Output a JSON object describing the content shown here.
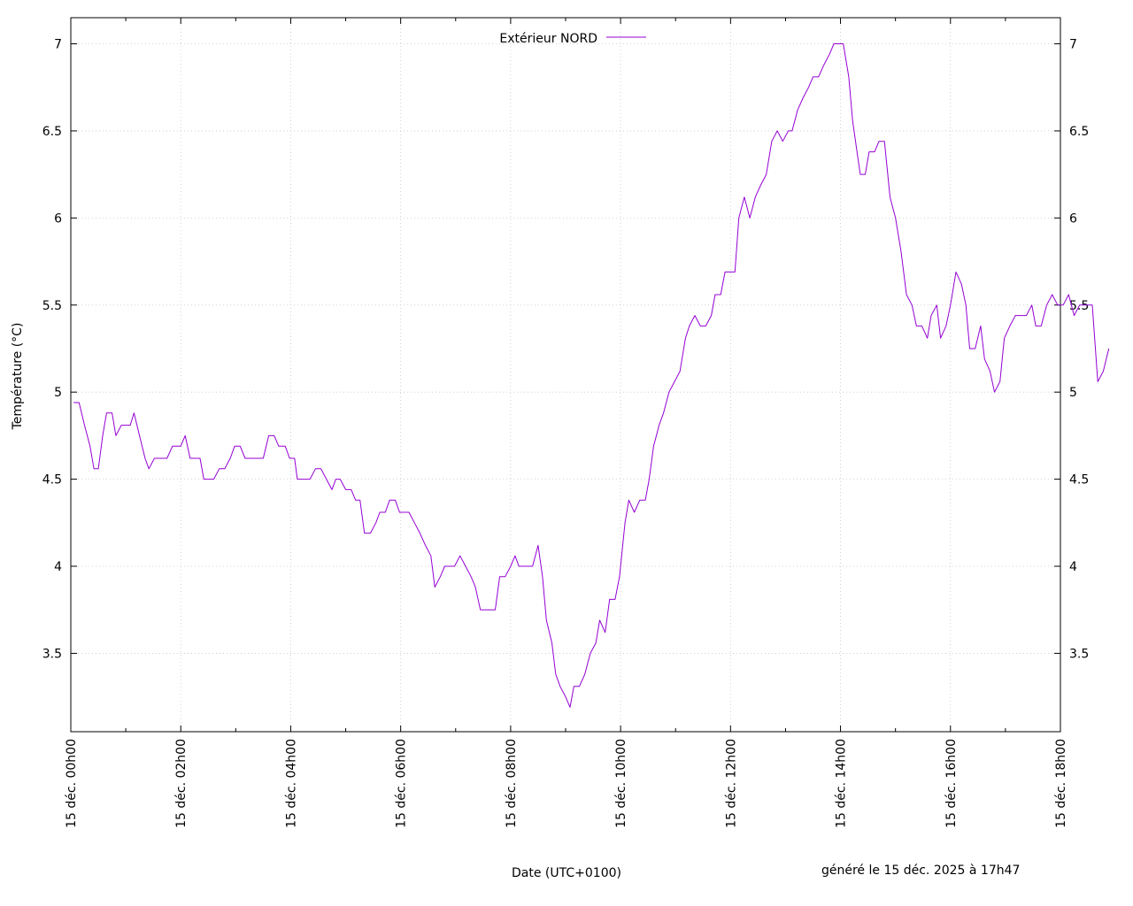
{
  "chart_data": {
    "type": "line",
    "title": "",
    "xlabel": "Date (UTC+0100)",
    "ylabel": "Température (°C)",
    "footer": "généré le 15 déc. 2025 à 17h47",
    "grid": true,
    "legend_position": "top-center",
    "x_unit": "hour of 15 déc. 2025",
    "xlim": [
      0,
      18
    ],
    "ylim": [
      3.05,
      7.15
    ],
    "x_ticks": [
      0,
      2,
      4,
      6,
      8,
      10,
      12,
      14,
      16,
      18
    ],
    "x_tick_labels": [
      "15 déc. 00h00",
      "15 déc. 02h00",
      "15 déc. 04h00",
      "15 déc. 06h00",
      "15 déc. 08h00",
      "15 déc. 10h00",
      "15 déc. 12h00",
      "15 déc. 14h00",
      "15 déc. 16h00",
      "15 déc. 18h00"
    ],
    "y_ticks": [
      3.5,
      4,
      4.5,
      5,
      5.5,
      6,
      6.5,
      7
    ],
    "y_tick_labels": [
      "3.5",
      "4",
      "4.5",
      "5",
      "5.5",
      "6",
      "6.5",
      "7"
    ],
    "series": [
      {
        "name": "Extérieur NORD",
        "color": "#9400d3",
        "points": [
          [
            0.05,
            4.94
          ],
          [
            0.15,
            4.94
          ],
          [
            0.25,
            4.81
          ],
          [
            0.35,
            4.69
          ],
          [
            0.42,
            4.56
          ],
          [
            0.5,
            4.56
          ],
          [
            0.58,
            4.75
          ],
          [
            0.65,
            4.88
          ],
          [
            0.75,
            4.88
          ],
          [
            0.82,
            4.75
          ],
          [
            0.92,
            4.81
          ],
          [
            1.08,
            4.81
          ],
          [
            1.15,
            4.88
          ],
          [
            1.25,
            4.75
          ],
          [
            1.35,
            4.62
          ],
          [
            1.42,
            4.56
          ],
          [
            1.52,
            4.62
          ],
          [
            1.75,
            4.62
          ],
          [
            1.85,
            4.69
          ],
          [
            2.0,
            4.69
          ],
          [
            2.08,
            4.75
          ],
          [
            2.17,
            4.62
          ],
          [
            2.35,
            4.62
          ],
          [
            2.42,
            4.5
          ],
          [
            2.6,
            4.5
          ],
          [
            2.7,
            4.56
          ],
          [
            2.8,
            4.56
          ],
          [
            2.9,
            4.62
          ],
          [
            2.98,
            4.69
          ],
          [
            3.08,
            4.69
          ],
          [
            3.17,
            4.62
          ],
          [
            3.5,
            4.62
          ],
          [
            3.6,
            4.75
          ],
          [
            3.7,
            4.75
          ],
          [
            3.78,
            4.69
          ],
          [
            3.9,
            4.69
          ],
          [
            3.98,
            4.62
          ],
          [
            4.07,
            4.62
          ],
          [
            4.12,
            4.5
          ],
          [
            4.35,
            4.5
          ],
          [
            4.45,
            4.56
          ],
          [
            4.55,
            4.56
          ],
          [
            4.65,
            4.5
          ],
          [
            4.75,
            4.44
          ],
          [
            4.82,
            4.5
          ],
          [
            4.9,
            4.5
          ],
          [
            5.0,
            4.44
          ],
          [
            5.1,
            4.44
          ],
          [
            5.18,
            4.38
          ],
          [
            5.26,
            4.38
          ],
          [
            5.34,
            4.19
          ],
          [
            5.45,
            4.19
          ],
          [
            5.55,
            4.25
          ],
          [
            5.62,
            4.31
          ],
          [
            5.72,
            4.31
          ],
          [
            5.8,
            4.38
          ],
          [
            5.9,
            4.38
          ],
          [
            5.98,
            4.31
          ],
          [
            6.15,
            4.31
          ],
          [
            6.25,
            4.25
          ],
          [
            6.35,
            4.19
          ],
          [
            6.45,
            4.12
          ],
          [
            6.55,
            4.06
          ],
          [
            6.62,
            3.88
          ],
          [
            6.72,
            3.94
          ],
          [
            6.8,
            4.0
          ],
          [
            6.98,
            4.0
          ],
          [
            7.08,
            4.06
          ],
          [
            7.18,
            4.0
          ],
          [
            7.28,
            3.94
          ],
          [
            7.36,
            3.88
          ],
          [
            7.45,
            3.75
          ],
          [
            7.72,
            3.75
          ],
          [
            7.8,
            3.94
          ],
          [
            7.9,
            3.94
          ],
          [
            8.0,
            4.0
          ],
          [
            8.08,
            4.06
          ],
          [
            8.15,
            4.0
          ],
          [
            8.4,
            4.0
          ],
          [
            8.5,
            4.12
          ],
          [
            8.58,
            3.94
          ],
          [
            8.65,
            3.69
          ],
          [
            8.75,
            3.56
          ],
          [
            8.82,
            3.38
          ],
          [
            8.9,
            3.31
          ],
          [
            9.0,
            3.25
          ],
          [
            9.08,
            3.19
          ],
          [
            9.15,
            3.31
          ],
          [
            9.25,
            3.31
          ],
          [
            9.35,
            3.38
          ],
          [
            9.45,
            3.5
          ],
          [
            9.55,
            3.56
          ],
          [
            9.62,
            3.69
          ],
          [
            9.72,
            3.62
          ],
          [
            9.8,
            3.81
          ],
          [
            9.9,
            3.81
          ],
          [
            9.98,
            3.94
          ],
          [
            10.08,
            4.25
          ],
          [
            10.15,
            4.38
          ],
          [
            10.25,
            4.31
          ],
          [
            10.35,
            4.38
          ],
          [
            10.45,
            4.38
          ],
          [
            10.52,
            4.5
          ],
          [
            10.6,
            4.69
          ],
          [
            10.7,
            4.81
          ],
          [
            10.78,
            4.88
          ],
          [
            10.88,
            5.0
          ],
          [
            10.98,
            5.06
          ],
          [
            11.08,
            5.12
          ],
          [
            11.18,
            5.31
          ],
          [
            11.25,
            5.38
          ],
          [
            11.35,
            5.44
          ],
          [
            11.45,
            5.38
          ],
          [
            11.55,
            5.38
          ],
          [
            11.65,
            5.44
          ],
          [
            11.72,
            5.56
          ],
          [
            11.82,
            5.56
          ],
          [
            11.9,
            5.69
          ],
          [
            12.08,
            5.69
          ],
          [
            12.15,
            6.0
          ],
          [
            12.25,
            6.12
          ],
          [
            12.35,
            6.0
          ],
          [
            12.45,
            6.12
          ],
          [
            12.55,
            6.19
          ],
          [
            12.65,
            6.25
          ],
          [
            12.75,
            6.44
          ],
          [
            12.85,
            6.5
          ],
          [
            12.95,
            6.44
          ],
          [
            13.05,
            6.5
          ],
          [
            13.12,
            6.5
          ],
          [
            13.22,
            6.62
          ],
          [
            13.32,
            6.69
          ],
          [
            13.42,
            6.75
          ],
          [
            13.5,
            6.81
          ],
          [
            13.6,
            6.81
          ],
          [
            13.7,
            6.88
          ],
          [
            13.8,
            6.94
          ],
          [
            13.88,
            7.0
          ],
          [
            14.05,
            7.0
          ],
          [
            14.15,
            6.81
          ],
          [
            14.22,
            6.56
          ],
          [
            14.3,
            6.38
          ],
          [
            14.36,
            6.25
          ],
          [
            14.45,
            6.25
          ],
          [
            14.52,
            6.38
          ],
          [
            14.62,
            6.38
          ],
          [
            14.7,
            6.44
          ],
          [
            14.8,
            6.44
          ],
          [
            14.9,
            6.12
          ],
          [
            15.0,
            6.0
          ],
          [
            15.1,
            5.81
          ],
          [
            15.2,
            5.56
          ],
          [
            15.3,
            5.5
          ],
          [
            15.38,
            5.38
          ],
          [
            15.48,
            5.38
          ],
          [
            15.58,
            5.31
          ],
          [
            15.65,
            5.44
          ],
          [
            15.75,
            5.5
          ],
          [
            15.82,
            5.31
          ],
          [
            15.92,
            5.38
          ],
          [
            16.0,
            5.5
          ],
          [
            16.1,
            5.69
          ],
          [
            16.2,
            5.62
          ],
          [
            16.28,
            5.5
          ],
          [
            16.35,
            5.25
          ],
          [
            16.45,
            5.25
          ],
          [
            16.55,
            5.38
          ],
          [
            16.62,
            5.19
          ],
          [
            16.72,
            5.12
          ],
          [
            16.8,
            5.0
          ],
          [
            16.9,
            5.06
          ],
          [
            16.98,
            5.31
          ],
          [
            17.08,
            5.38
          ],
          [
            17.18,
            5.44
          ],
          [
            17.38,
            5.44
          ],
          [
            17.48,
            5.5
          ],
          [
            17.55,
            5.38
          ],
          [
            17.65,
            5.38
          ],
          [
            17.75,
            5.5
          ],
          [
            17.85,
            5.56
          ],
          [
            17.95,
            5.5
          ],
          [
            18.05,
            5.5
          ],
          [
            18.15,
            5.56
          ],
          [
            18.25,
            5.44
          ],
          [
            18.35,
            5.5
          ],
          [
            18.58,
            5.5
          ],
          [
            18.68,
            5.06
          ],
          [
            18.78,
            5.12
          ],
          [
            18.88,
            5.25
          ]
        ]
      }
    ]
  }
}
